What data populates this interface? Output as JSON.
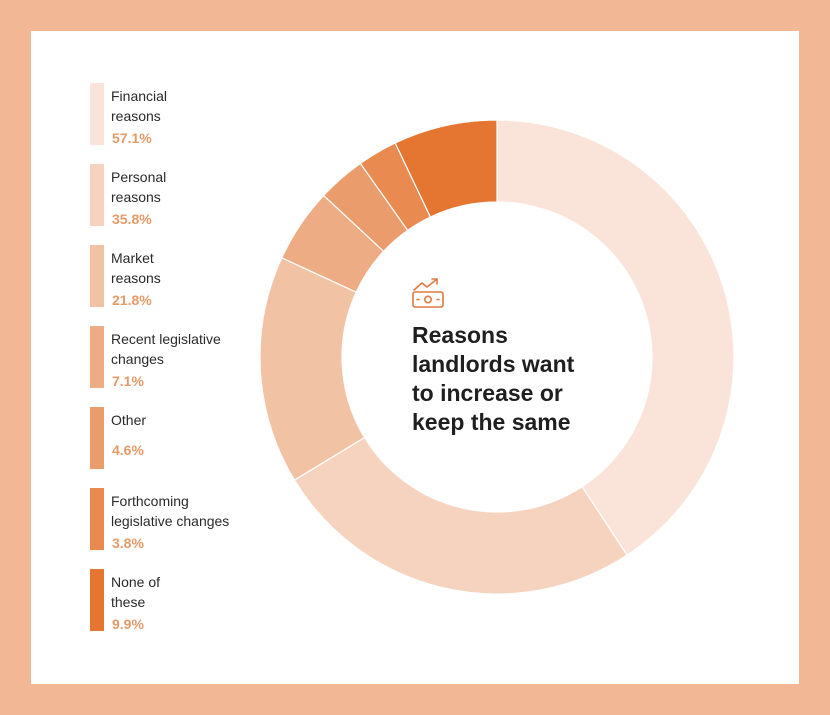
{
  "colors": {
    "background": "#f2b896",
    "card": "#ffffff",
    "value_text": "#e59a68",
    "icon": "#e07a3e"
  },
  "center": {
    "icon": "money-growth-icon",
    "title": "Reasons\nlandlords want\nto increase or\nkeep the same"
  },
  "chart_data": {
    "type": "pie",
    "style": "donut",
    "legend_position": "left",
    "categories": [
      "Financial\nreasons",
      "Personal\nreasons",
      "Market\nreasons",
      "Recent legislative\nchanges",
      "Other",
      "Forthcoming\nlegislative changes",
      "None of\nthese"
    ],
    "values": [
      57.1,
      35.8,
      21.8,
      7.1,
      4.6,
      3.8,
      9.9
    ],
    "value_labels": [
      "57.1%",
      "35.8%",
      "21.8%",
      "7.1%",
      "4.6%",
      "3.8%",
      "9.9%"
    ],
    "colors": [
      "#fae4d9",
      "#f6d3bf",
      "#f2c2a5",
      "#eeac85",
      "#eb9c6c",
      "#e98a51",
      "#e47632"
    ]
  }
}
